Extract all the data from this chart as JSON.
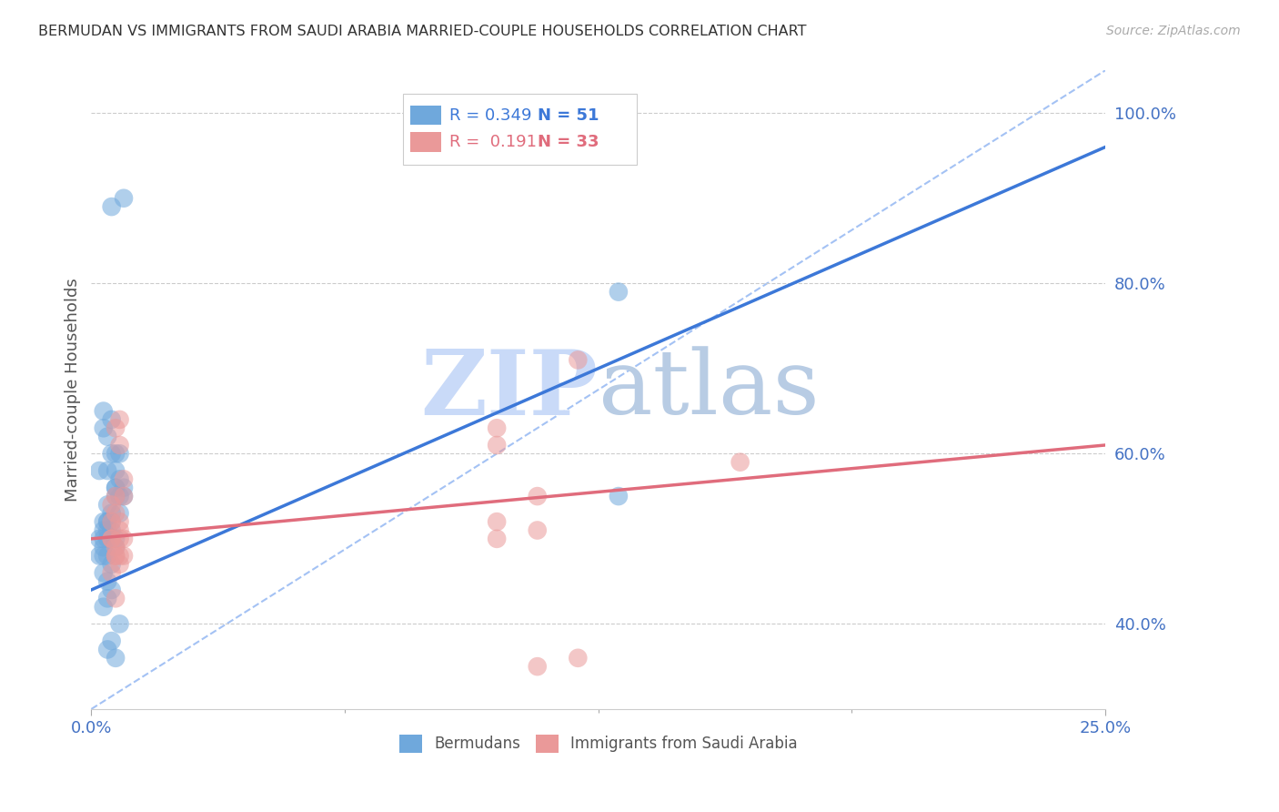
{
  "title": "BERMUDAN VS IMMIGRANTS FROM SAUDI ARABIA MARRIED-COUPLE HOUSEHOLDS CORRELATION CHART",
  "source": "Source: ZipAtlas.com",
  "ylabel_label": "Married-couple Households",
  "xlim": [
    0.0,
    0.25
  ],
  "ylim": [
    0.3,
    1.05
  ],
  "blue_color": "#6fa8dc",
  "blue_line_color": "#3c78d8",
  "pink_color": "#ea9999",
  "pink_line_color": "#e06c7c",
  "dashed_line_color": "#a4c2f4",
  "axis_color": "#4472c4",
  "blue_scatter_x": [
    0.005,
    0.008,
    0.002,
    0.003,
    0.004,
    0.006,
    0.007,
    0.005,
    0.003,
    0.008,
    0.004,
    0.005,
    0.003,
    0.006,
    0.007,
    0.004,
    0.003,
    0.005,
    0.006,
    0.004,
    0.002,
    0.003,
    0.005,
    0.007,
    0.004,
    0.006,
    0.003,
    0.005,
    0.004,
    0.002,
    0.008,
    0.006,
    0.004,
    0.003,
    0.005,
    0.004,
    0.003,
    0.006,
    0.005,
    0.004,
    0.007,
    0.005,
    0.006,
    0.004,
    0.003,
    0.005,
    0.004,
    0.006,
    0.007,
    0.13,
    0.13
  ],
  "blue_scatter_y": [
    0.89,
    0.9,
    0.58,
    0.63,
    0.62,
    0.6,
    0.6,
    0.64,
    0.65,
    0.55,
    0.58,
    0.6,
    0.52,
    0.56,
    0.55,
    0.54,
    0.5,
    0.51,
    0.56,
    0.52,
    0.5,
    0.48,
    0.53,
    0.57,
    0.52,
    0.55,
    0.51,
    0.52,
    0.5,
    0.48,
    0.56,
    0.58,
    0.51,
    0.49,
    0.5,
    0.48,
    0.46,
    0.49,
    0.47,
    0.45,
    0.53,
    0.44,
    0.5,
    0.43,
    0.42,
    0.38,
    0.37,
    0.36,
    0.4,
    0.79,
    0.55
  ],
  "pink_scatter_x": [
    0.005,
    0.005,
    0.006,
    0.007,
    0.007,
    0.008,
    0.006,
    0.005,
    0.008,
    0.006,
    0.007,
    0.005,
    0.006,
    0.007,
    0.008,
    0.006,
    0.007,
    0.005,
    0.006,
    0.007,
    0.008,
    0.006,
    0.007,
    0.1,
    0.1,
    0.11,
    0.1,
    0.1,
    0.11,
    0.16,
    0.12,
    0.11,
    0.12
  ],
  "pink_scatter_y": [
    0.52,
    0.5,
    0.63,
    0.64,
    0.61,
    0.57,
    0.55,
    0.54,
    0.55,
    0.53,
    0.51,
    0.5,
    0.48,
    0.52,
    0.5,
    0.48,
    0.47,
    0.46,
    0.49,
    0.5,
    0.48,
    0.43,
    0.48,
    0.52,
    0.5,
    0.55,
    0.63,
    0.61,
    0.51,
    0.59,
    0.36,
    0.35,
    0.71
  ],
  "blue_line_x": [
    0.0,
    0.25
  ],
  "blue_line_y": [
    0.44,
    0.96
  ],
  "pink_line_x": [
    0.0,
    0.25
  ],
  "pink_line_y": [
    0.5,
    0.61
  ],
  "dashed_line_x": [
    0.0,
    0.25
  ],
  "dashed_line_y": [
    0.3,
    1.05
  ],
  "watermark_zip": "ZIP",
  "watermark_atlas": "atlas",
  "watermark_color_zip": "#c9daf8",
  "watermark_color_atlas": "#b8cce4",
  "background_color": "#ffffff"
}
